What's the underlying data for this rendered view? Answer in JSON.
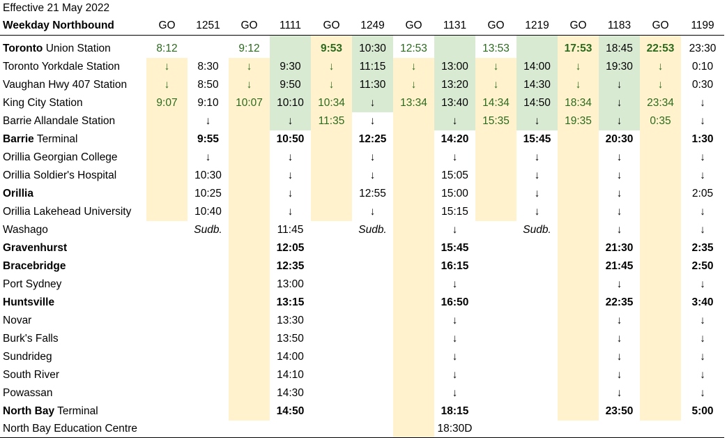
{
  "header": {
    "effective": "Effective 21 May 2022"
  },
  "table": {
    "direction_label": "Weekday Northbound",
    "trains": [
      {
        "label": "GO",
        "type": "go"
      },
      {
        "label": "1251",
        "type": "train"
      },
      {
        "label": "GO",
        "type": "go"
      },
      {
        "label": "1111",
        "type": "train"
      },
      {
        "label": "GO",
        "type": "go"
      },
      {
        "label": "1249",
        "type": "train"
      },
      {
        "label": "GO",
        "type": "go"
      },
      {
        "label": "1131",
        "type": "train"
      },
      {
        "label": "GO",
        "type": "go"
      },
      {
        "label": "1219",
        "type": "train"
      },
      {
        "label": "GO",
        "type": "go"
      },
      {
        "label": "1183",
        "type": "train"
      },
      {
        "label": "GO",
        "type": "go"
      },
      {
        "label": "1199",
        "type": "train"
      }
    ],
    "rows": [
      {
        "station_bold": "Toronto",
        "station_rest": " Union Station",
        "bold_times": false,
        "cells": [
          "8:12",
          "",
          "9:12",
          "",
          "9:53",
          "10:30",
          "12:53",
          "",
          "13:53",
          "",
          "17:53",
          "18:45",
          "22:53",
          "23:30"
        ]
      },
      {
        "station_bold": "",
        "station_rest": "Toronto Yorkdale Station",
        "bold_times": false,
        "cells": [
          "↓",
          "8:30",
          "↓",
          "9:30",
          "↓",
          "11:15",
          "↓",
          "13:00",
          "↓",
          "14:00",
          "↓",
          "19:30",
          "↓",
          "0:10"
        ]
      },
      {
        "station_bold": "",
        "station_rest": "Vaughan Hwy 407 Station",
        "bold_times": false,
        "cells": [
          "↓",
          "8:50",
          "↓",
          "9:50",
          "↓",
          "11:30",
          "↓",
          "13:20",
          "↓",
          "14:30",
          "↓",
          "↓",
          "↓",
          "0:30"
        ]
      },
      {
        "station_bold": "",
        "station_rest": "King City Station",
        "bold_times": false,
        "cells": [
          "9:07",
          "9:10",
          "10:07",
          "10:10",
          "10:34",
          "↓",
          "13:34",
          "13:40",
          "14:34",
          "14:50",
          "18:34",
          "↓",
          "23:34",
          "↓"
        ]
      },
      {
        "station_bold": "",
        "station_rest": "Barrie Allandale Station",
        "bold_times": false,
        "cells": [
          "",
          "↓",
          "",
          "↓",
          "11:35",
          "↓",
          "",
          "↓",
          "15:35",
          "↓",
          "19:35",
          "↓",
          "0:35",
          "↓"
        ]
      },
      {
        "station_bold": "Barrie",
        "station_rest": " Terminal",
        "bold_times": true,
        "cells": [
          "",
          "9:55",
          "",
          "10:50",
          "",
          "12:25",
          "",
          "14:20",
          "",
          "15:45",
          "",
          "20:30",
          "",
          "1:30"
        ]
      },
      {
        "station_bold": "",
        "station_rest": "Orillia Georgian College",
        "bold_times": false,
        "cells": [
          "",
          "↓",
          "",
          "↓",
          "",
          "↓",
          "",
          "↓",
          "",
          "↓",
          "",
          "↓",
          "",
          "↓"
        ]
      },
      {
        "station_bold": "",
        "station_rest": "Orillia Soldier's Hospital",
        "bold_times": false,
        "cells": [
          "",
          "10:30",
          "",
          "↓",
          "",
          "↓",
          "",
          "15:05",
          "",
          "↓",
          "",
          "↓",
          "",
          "↓"
        ]
      },
      {
        "station_bold": "Orillia",
        "station_rest": "",
        "bold_times": false,
        "cells": [
          "",
          "10:25",
          "",
          "↓",
          "",
          "12:55",
          "",
          "15:00",
          "",
          "↓",
          "",
          "↓",
          "",
          "2:05"
        ]
      },
      {
        "station_bold": "",
        "station_rest": "Orillia Lakehead University",
        "bold_times": false,
        "cells": [
          "",
          "10:40",
          "",
          "↓",
          "",
          "↓",
          "",
          "15:15",
          "",
          "↓",
          "",
          "↓",
          "",
          "↓"
        ]
      },
      {
        "station_bold": "",
        "station_rest": "Washago",
        "bold_times": false,
        "cells": [
          "",
          "Sudb.",
          "",
          "11:45",
          "",
          "Sudb.",
          "",
          "↓",
          "",
          "Sudb.",
          "",
          "↓",
          "",
          "↓"
        ]
      },
      {
        "station_bold": "Gravenhurst",
        "station_rest": "",
        "bold_times": true,
        "cells": [
          "",
          "",
          "",
          "12:05",
          "",
          "",
          "",
          "15:45",
          "",
          "",
          "",
          "21:30",
          "",
          "2:35"
        ]
      },
      {
        "station_bold": "Bracebridge",
        "station_rest": "",
        "bold_times": true,
        "cells": [
          "",
          "",
          "",
          "12:35",
          "",
          "",
          "",
          "16:15",
          "",
          "",
          "",
          "21:45",
          "",
          "2:50"
        ]
      },
      {
        "station_bold": "",
        "station_rest": "Port Sydney",
        "bold_times": false,
        "cells": [
          "",
          "",
          "",
          "13:00",
          "",
          "",
          "",
          "↓",
          "",
          "",
          "",
          "↓",
          "",
          "↓"
        ]
      },
      {
        "station_bold": "Huntsville",
        "station_rest": "",
        "bold_times": true,
        "cells": [
          "",
          "",
          "",
          "13:15",
          "",
          "",
          "",
          "16:50",
          "",
          "",
          "",
          "22:35",
          "",
          "3:40"
        ]
      },
      {
        "station_bold": "",
        "station_rest": "Novar",
        "bold_times": false,
        "cells": [
          "",
          "",
          "",
          "13:30",
          "",
          "",
          "",
          "↓",
          "",
          "",
          "",
          "↓",
          "",
          "↓"
        ]
      },
      {
        "station_bold": "",
        "station_rest": "Burk's Falls",
        "bold_times": false,
        "cells": [
          "",
          "",
          "",
          "13:50",
          "",
          "",
          "",
          "↓",
          "",
          "",
          "",
          "↓",
          "",
          "↓"
        ]
      },
      {
        "station_bold": "",
        "station_rest": "Sundrideg",
        "bold_times": false,
        "cells": [
          "",
          "",
          "",
          "14:00",
          "",
          "",
          "",
          "↓",
          "",
          "",
          "",
          "↓",
          "",
          "↓"
        ]
      },
      {
        "station_bold": "",
        "station_rest": "South River",
        "bold_times": false,
        "cells": [
          "",
          "",
          "",
          "14:10",
          "",
          "",
          "",
          "↓",
          "",
          "",
          "",
          "↓",
          "",
          "↓"
        ]
      },
      {
        "station_bold": "",
        "station_rest": "Powassan",
        "bold_times": false,
        "cells": [
          "",
          "",
          "",
          "14:30",
          "",
          "",
          "",
          "↓",
          "",
          "",
          "",
          "↓",
          "",
          "↓"
        ]
      },
      {
        "station_bold": "North Bay",
        "station_rest": " Terminal",
        "bold_times": true,
        "cells": [
          "",
          "",
          "",
          "14:50",
          "",
          "",
          "",
          "18:15",
          "",
          "",
          "",
          "23:50",
          "",
          "5:00"
        ]
      },
      {
        "station_bold": "",
        "station_rest": "North Bay Education Centre",
        "bold_times": false,
        "cells": [
          "",
          "",
          "",
          "",
          "",
          "",
          "",
          "18:30D",
          "",
          "",
          "",
          "",
          "",
          ""
        ]
      }
    ]
  },
  "colors": {
    "cream": "#fff2cc",
    "green": "#d9ead3",
    "go_text": "#2b6a1e"
  }
}
